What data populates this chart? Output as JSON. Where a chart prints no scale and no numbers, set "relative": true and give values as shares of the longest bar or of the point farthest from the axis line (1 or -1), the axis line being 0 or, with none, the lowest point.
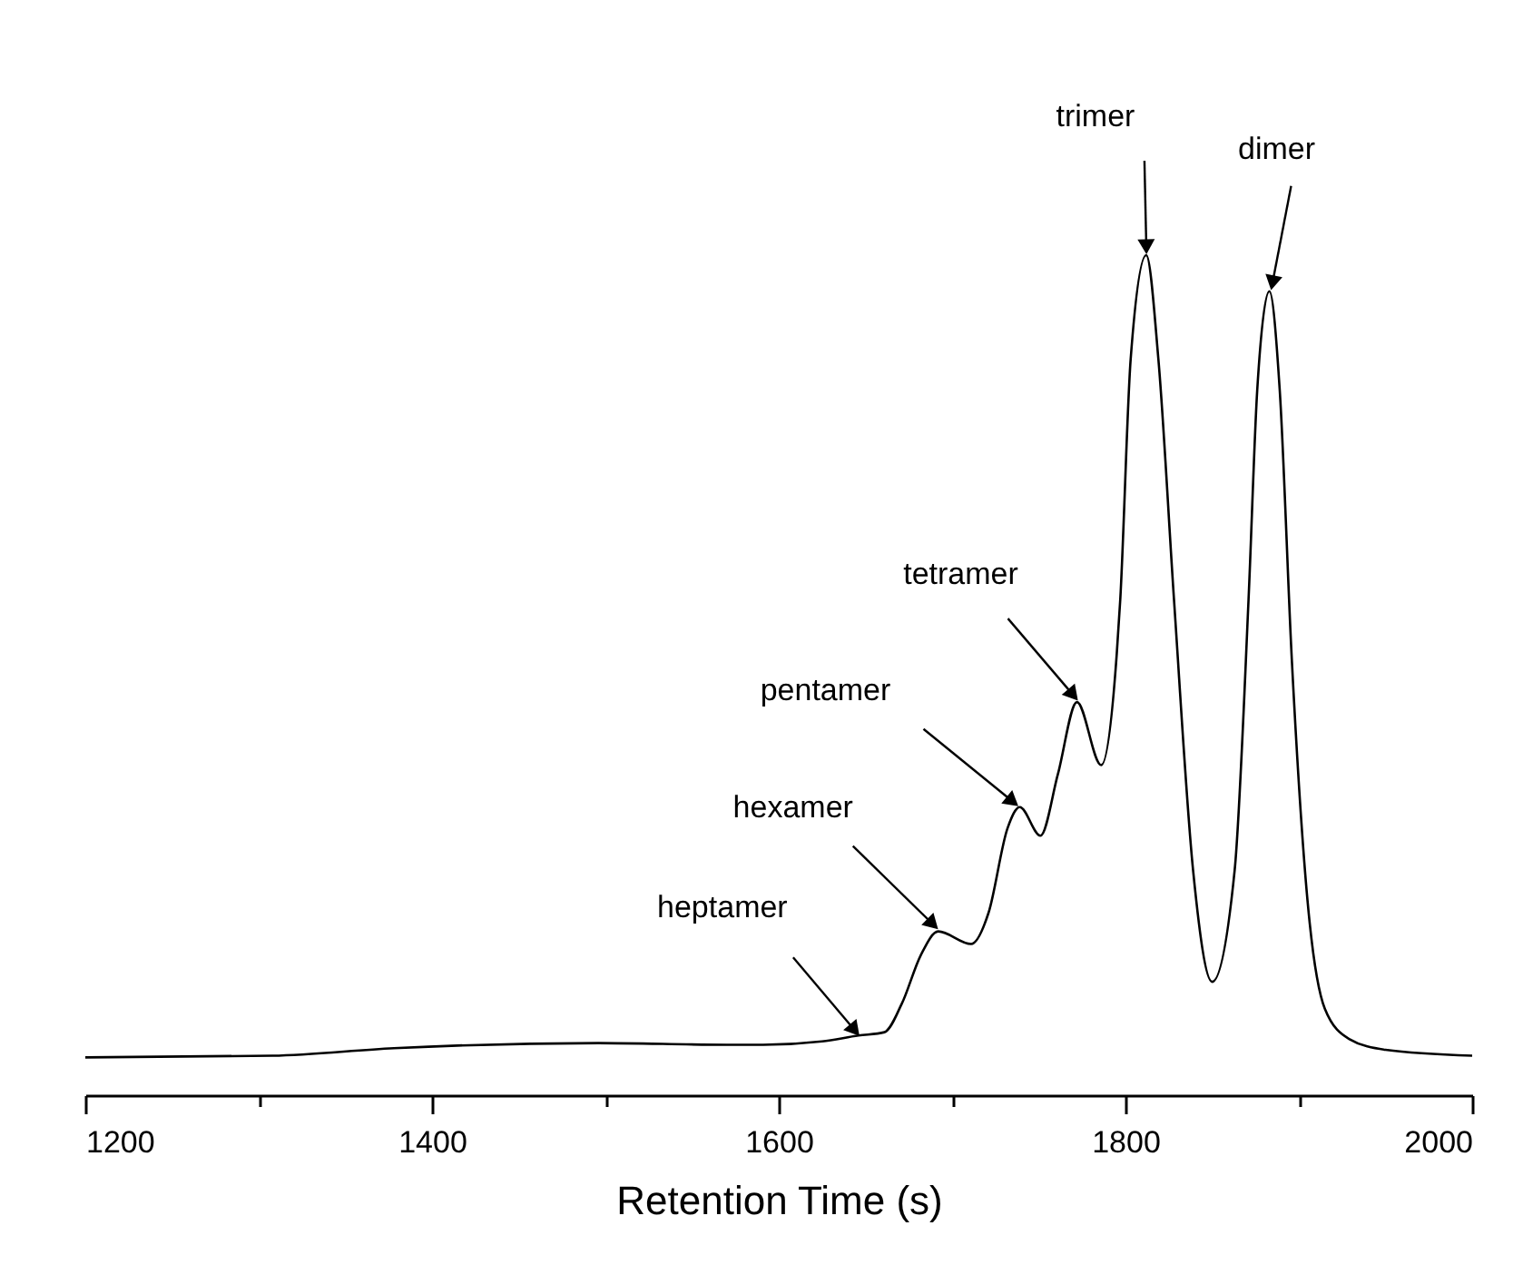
{
  "chart_data": {
    "type": "line",
    "relative": true,
    "xlabel": "Retention Time (s)",
    "xlim": [
      1200,
      2000
    ],
    "xticks": [
      1200,
      {
        "value": 1300,
        "label": null
      },
      1400,
      {
        "value": 1500,
        "label": null
      },
      1600,
      {
        "value": 1700,
        "label": null
      },
      1800,
      {
        "value": 1900,
        "label": null
      },
      2000
    ],
    "tick_labels": "x",
    "grid": false,
    "legend": false,
    "marker": "none",
    "line_style": "solid",
    "series": [
      {
        "color": "#000000",
        "x": [
          1200,
          1308,
          1378,
          1496,
          1570,
          1591,
          1625,
          1646,
          1661,
          1671,
          1682,
          1692,
          1711,
          1721,
          1732,
          1739,
          1751,
          1761,
          1772,
          1786,
          1795,
          1797,
          1803,
          1812,
          1819,
          1828,
          1839,
          1850,
          1863,
          1871,
          1876,
          1883,
          1889,
          1896,
          1905,
          1915,
          1929,
          1950,
          2000
        ],
        "values": [
          0.045,
          0.047,
          0.056,
          0.062,
          0.06,
          0.06,
          0.064,
          0.071,
          0.075,
          0.109,
          0.167,
          0.195,
          0.18,
          0.217,
          0.318,
          0.343,
          0.309,
          0.382,
          0.468,
          0.393,
          0.526,
          0.59,
          0.876,
          1.0,
          0.876,
          0.59,
          0.268,
          0.135,
          0.268,
          0.59,
          0.839,
          0.957,
          0.839,
          0.517,
          0.232,
          0.103,
          0.067,
          0.054,
          0.047
        ]
      }
    ],
    "annotations": [
      {
        "text": "heptamer",
        "x": 1646,
        "y": 0.071
      },
      {
        "text": "hexamer",
        "x": 1692,
        "y": 0.195
      },
      {
        "text": "pentamer",
        "x": 1739,
        "y": 0.343
      },
      {
        "text": "tetramer",
        "x": 1772,
        "y": 0.468
      },
      {
        "text": "trimer",
        "x": 1812,
        "y": 1.0
      },
      {
        "text": "dimer",
        "x": 1883,
        "y": 0.957
      }
    ]
  }
}
